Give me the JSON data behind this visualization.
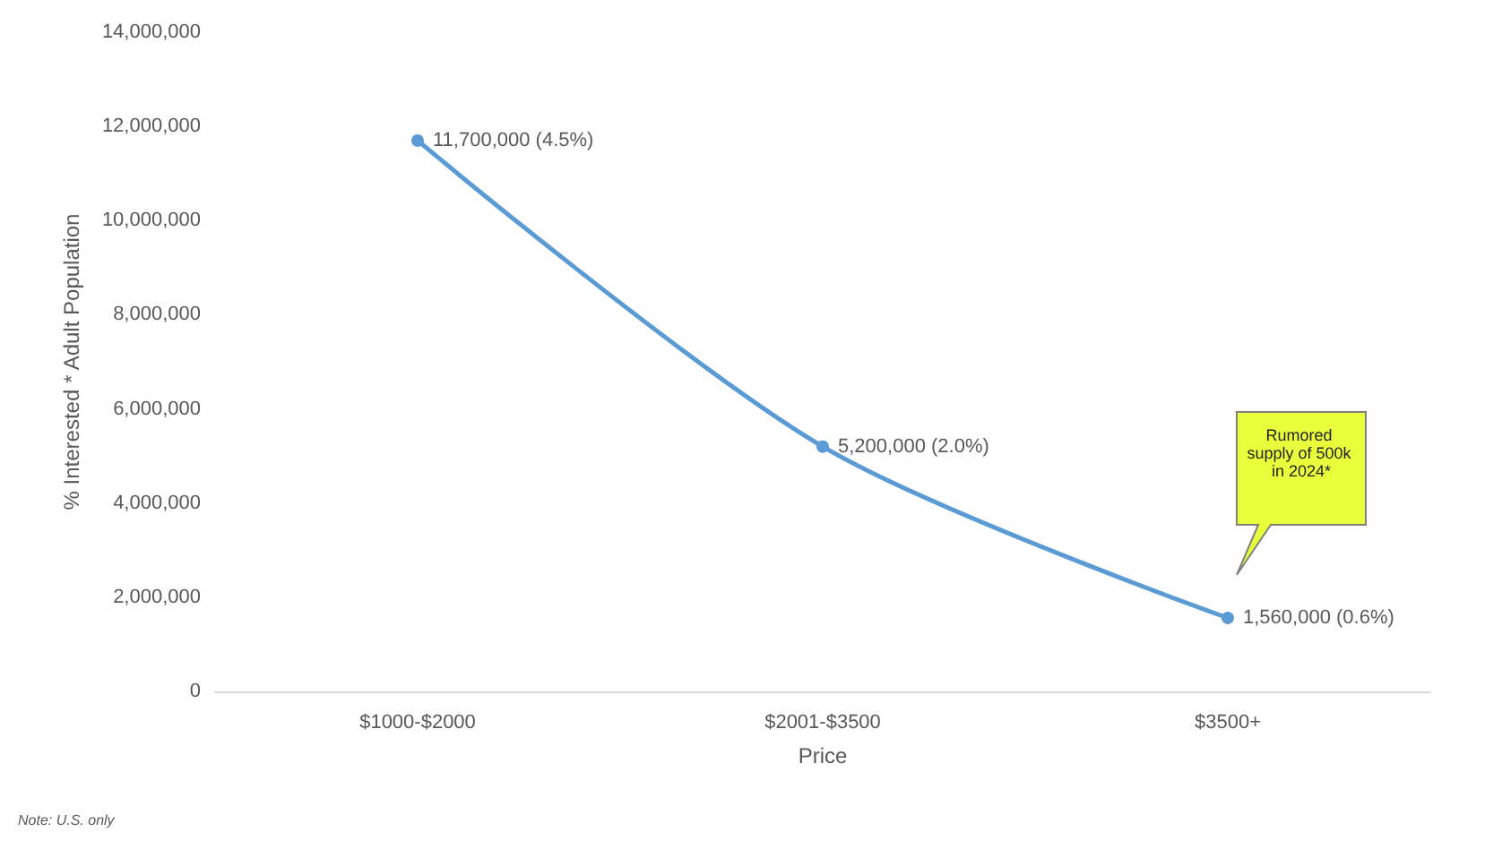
{
  "chart_data": {
    "type": "line",
    "xlabel": "Price",
    "ylabel": "% Interested * Adult Population",
    "categories": [
      "$1000-$2000",
      "$2001-$3500",
      "$3500+"
    ],
    "series": [
      {
        "color": "#5b9bd5",
        "values": [
          11700000,
          5200000,
          1560000
        ],
        "value_labels": [
          "11,700,000 (4.5%)",
          "5,200,000 (2.0%)",
          "1,560,000 (0.6%)"
        ]
      }
    ],
    "ylim": [
      0,
      14000000
    ],
    "yticks": [
      0,
      {
        "value": 2000000,
        "label": "2,000,000"
      },
      {
        "value": 4000000,
        "label": "4,000,000"
      },
      {
        "value": 6000000,
        "label": "6,000,000"
      },
      {
        "value": 8000000,
        "label": "8,000,000"
      },
      {
        "value": 10000000,
        "label": "10,000,000"
      },
      {
        "value": 12000000,
        "label": "12,000,000"
      },
      {
        "value": 14000000,
        "label": "14,000,000"
      }
    ],
    "grid": false,
    "marker": "circle",
    "annotations": [
      "Rumored supply of 500k in 2024*",
      "Note: U.S. only"
    ]
  }
}
